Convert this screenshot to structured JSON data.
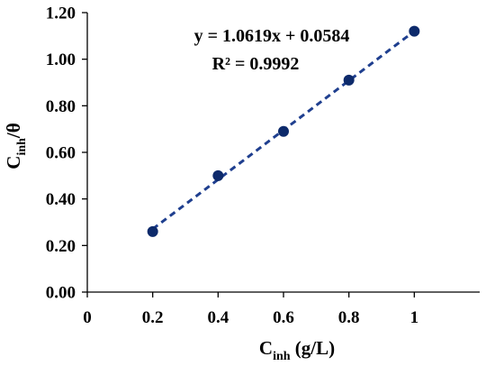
{
  "chart_data": {
    "type": "scatter",
    "x": [
      0.2,
      0.4,
      0.6,
      0.8,
      1.0
    ],
    "y": [
      0.26,
      0.5,
      0.69,
      0.91,
      1.12
    ],
    "xlim": [
      0,
      1.2
    ],
    "ylim": [
      0,
      1.2
    ],
    "xticks": [
      "0",
      "0.2",
      "0.4",
      "0.6",
      "0.8",
      "1"
    ],
    "yticks": [
      "0.00",
      "0.20",
      "0.40",
      "0.60",
      "0.80",
      "1.00",
      "1.20"
    ],
    "xlabel": {
      "main": "C",
      "sub": "inh",
      "rest": " (g/L)"
    },
    "ylabel": {
      "main": "C",
      "sub": "inh",
      "rest": "/θ"
    },
    "trendline": {
      "type": "linear",
      "slope": 1.0619,
      "intercept": 0.0584,
      "style": "dashed"
    },
    "annotations": {
      "equation": "y = 1.0619x + 0.0584",
      "r2": "R² = 0.9992"
    },
    "grid": false,
    "colors": {
      "marker": "#0d2a6b",
      "trendline": "#1f3f8f",
      "axis": "#000000"
    }
  }
}
